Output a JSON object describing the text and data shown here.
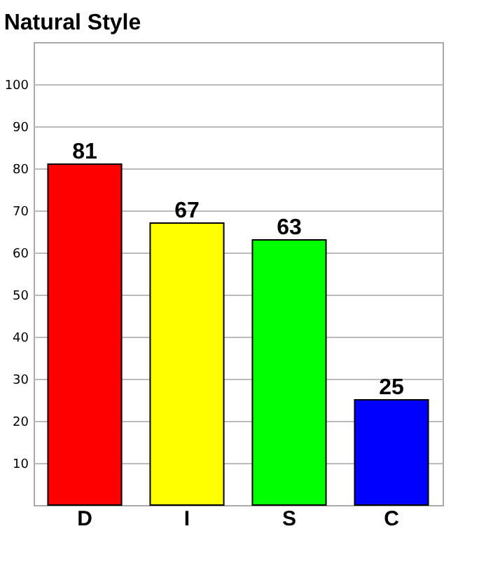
{
  "chart_data": {
    "type": "bar",
    "title": "Natural Style",
    "categories": [
      "D",
      "I",
      "S",
      "C"
    ],
    "values": [
      81,
      67,
      63,
      25
    ],
    "colors": [
      "#ff0000",
      "#ffff00",
      "#00ff00",
      "#0000ff"
    ],
    "ylim": [
      0,
      110
    ],
    "yticks": [
      10,
      20,
      30,
      40,
      50,
      60,
      70,
      80,
      90,
      100
    ],
    "grid": "y",
    "data_labels": true
  }
}
